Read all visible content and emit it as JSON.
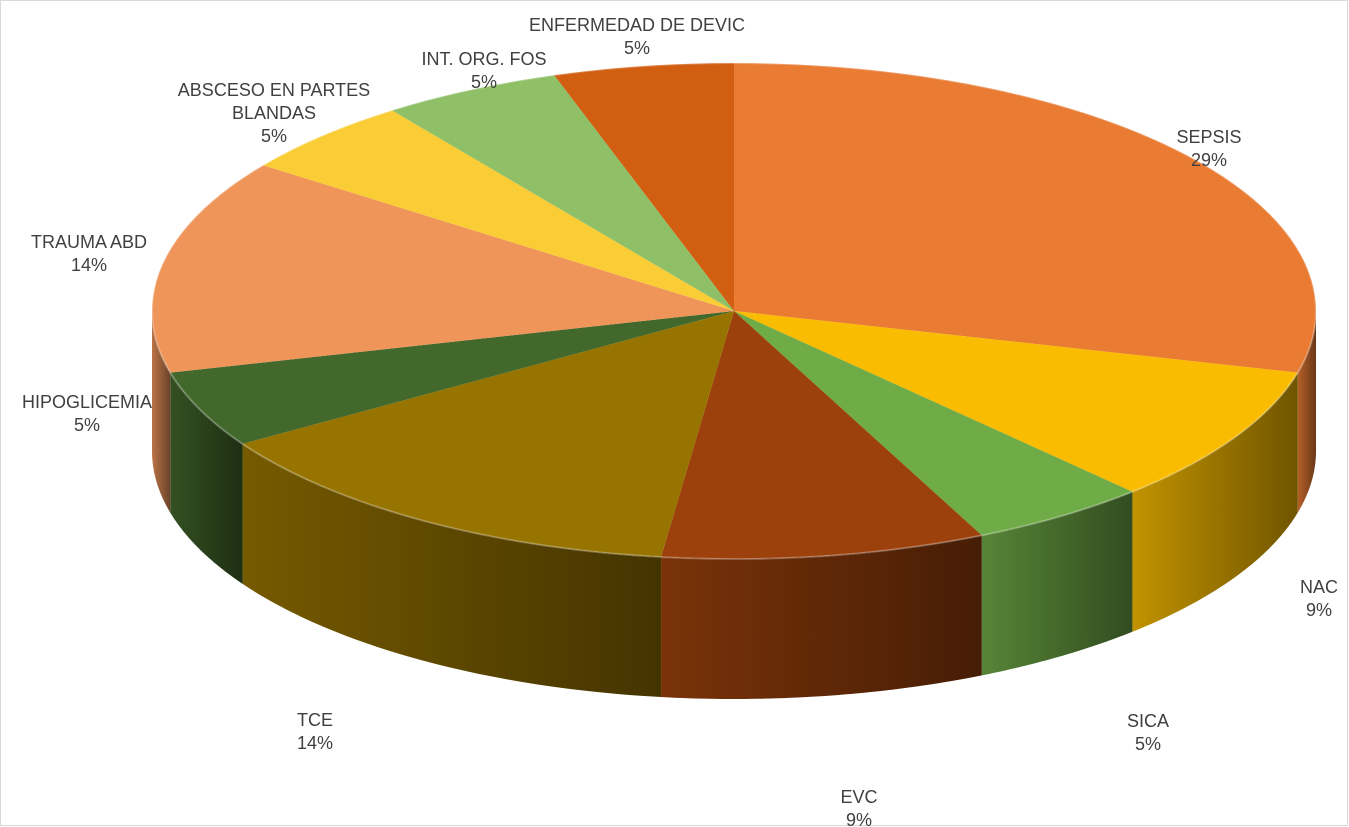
{
  "chart_data": {
    "type": "pie",
    "title": "",
    "legend": "none",
    "slices": [
      {
        "label": "SEPSIS",
        "value": 29,
        "pct_label": "29%",
        "color": "#E97B33"
      },
      {
        "label": "NAC",
        "value": 9,
        "pct_label": "9%",
        "color": "#F9BC00"
      },
      {
        "label": "SICA",
        "value": 5,
        "pct_label": "5%",
        "color": "#6FAB46"
      },
      {
        "label": "EVC",
        "value": 9,
        "pct_label": "9%",
        "color": "#9C410C"
      },
      {
        "label": "TCE",
        "value": 14,
        "pct_label": "14%",
        "color": "#977400"
      },
      {
        "label": "HIPOGLICEMIA",
        "value": 5,
        "pct_label": "5%",
        "color": "#43682B"
      },
      {
        "label": "TRAUMA ABD",
        "value": 14,
        "pct_label": "14%",
        "color": "#EF955A"
      },
      {
        "label": "ABSCESO EN PARTES BLANDAS",
        "value": 5,
        "pct_label": "5%",
        "color": "#FACC35"
      },
      {
        "label": "INT. ORG. FOS",
        "value": 5,
        "pct_label": "5%",
        "color": "#8FBF67"
      },
      {
        "label": "ENFERMEDAD DE DEVIC",
        "value": 5,
        "pct_label": "5%",
        "color": "#D15E11"
      }
    ]
  }
}
